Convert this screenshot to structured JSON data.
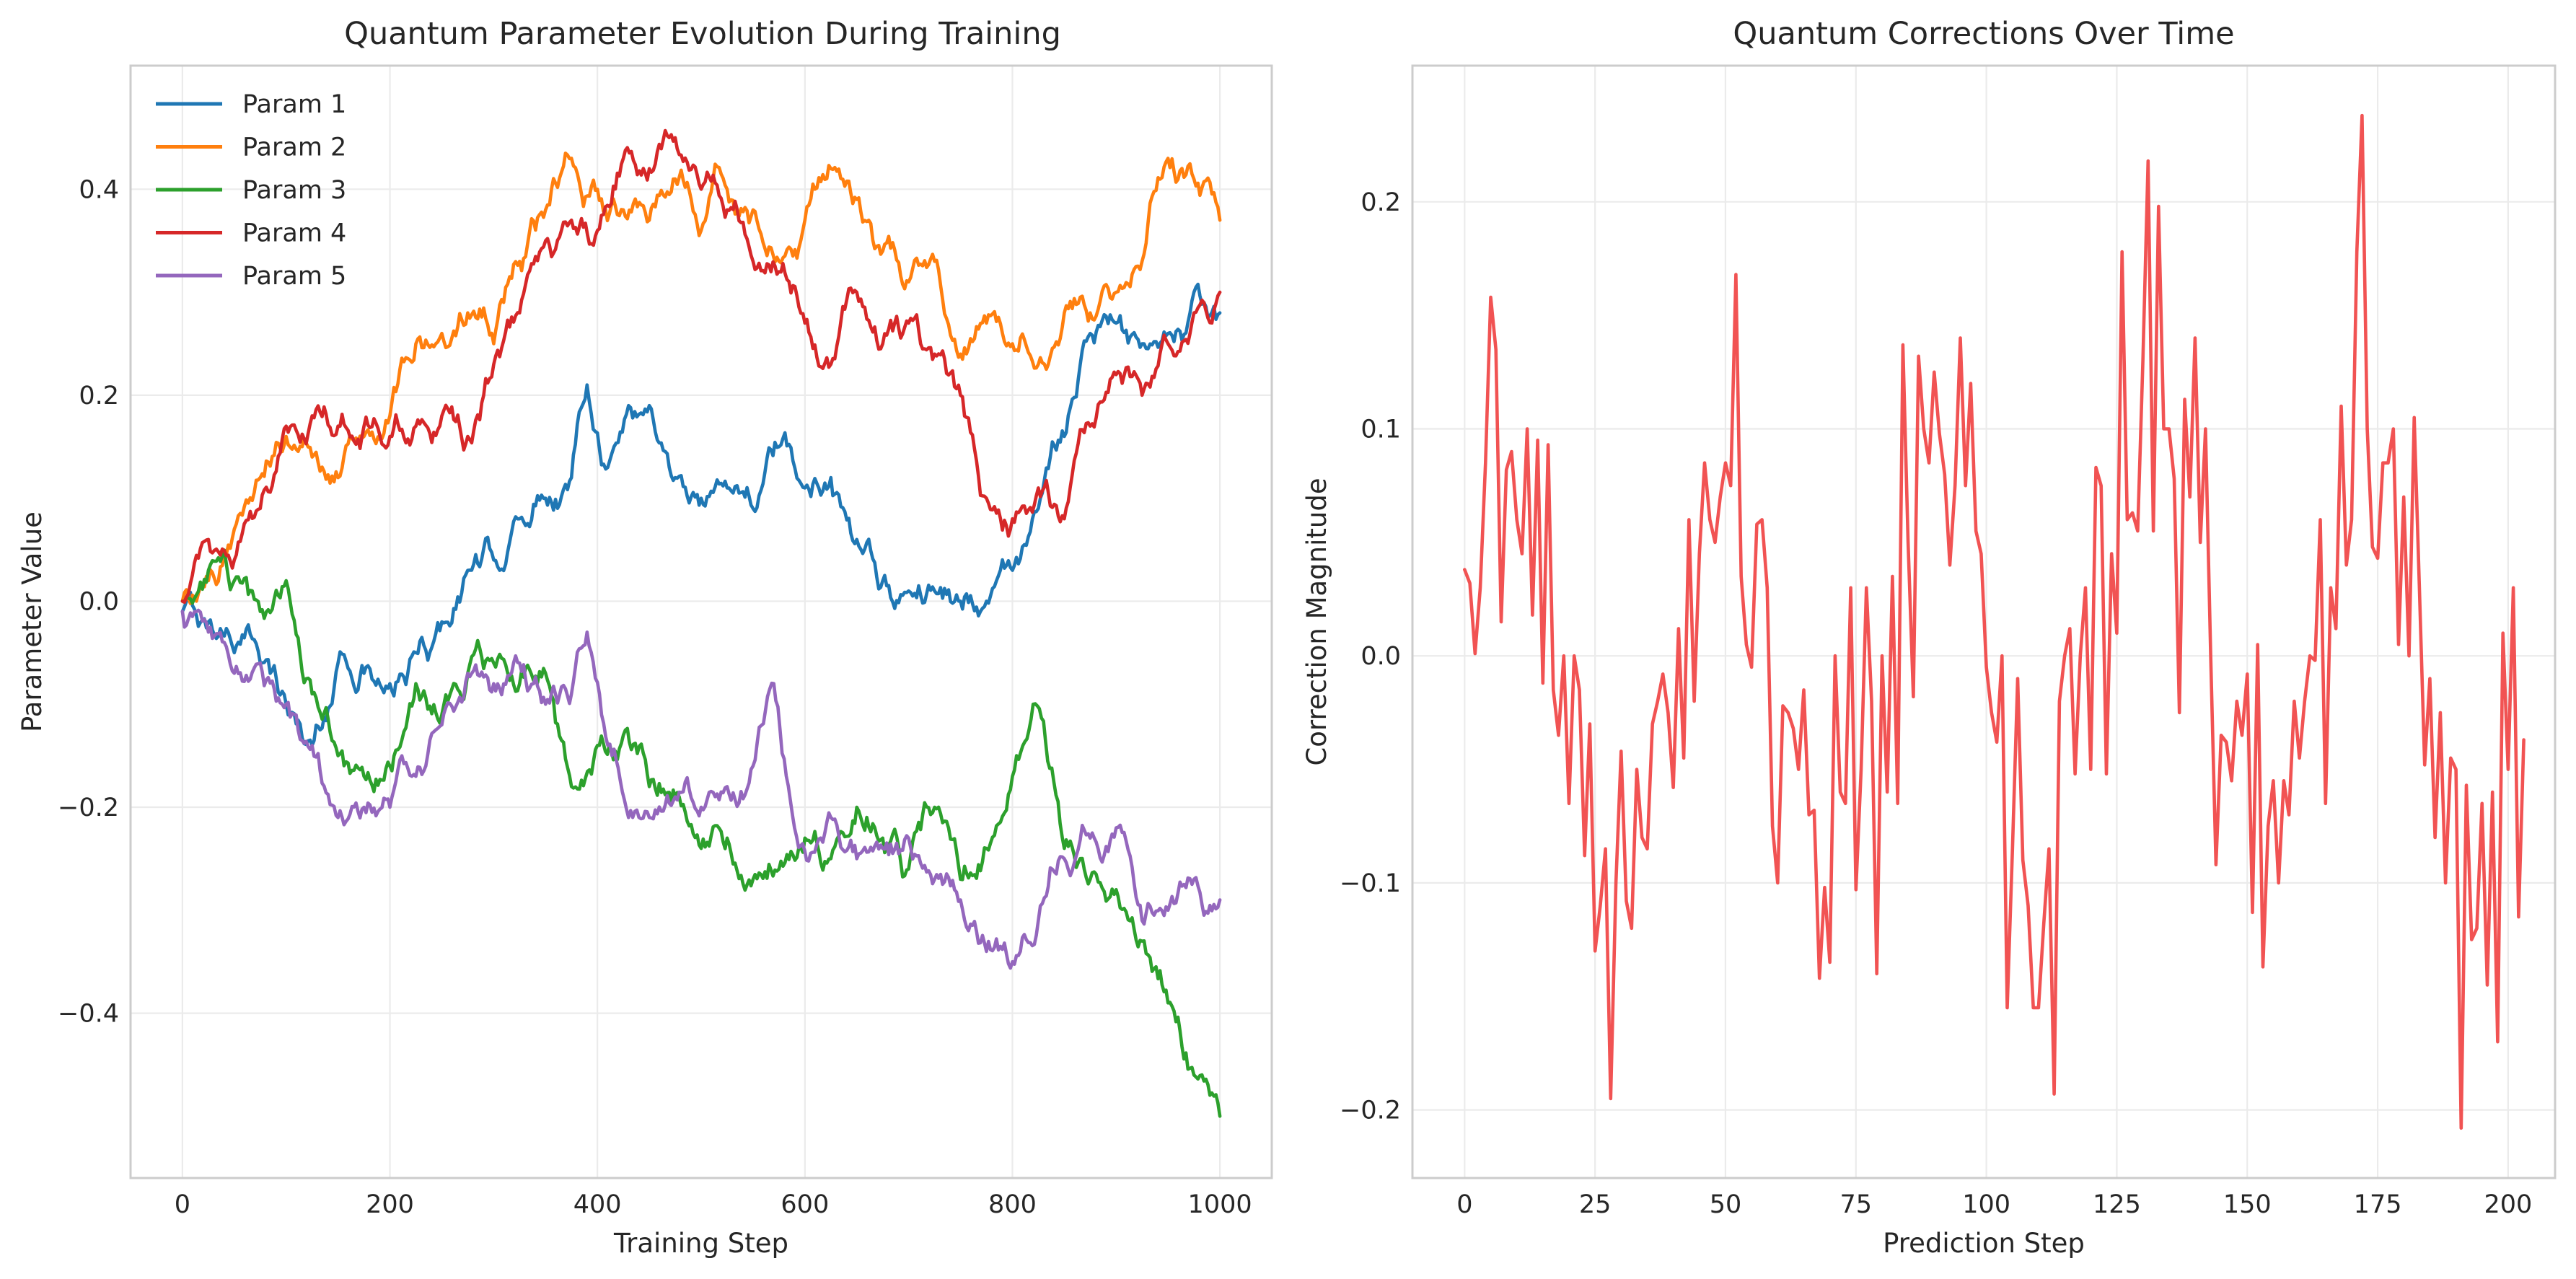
{
  "chart_data": [
    {
      "type": "line",
      "title": "Quantum Parameter Evolution During Training",
      "xlabel": "Training Step",
      "ylabel": "Parameter Value",
      "xlim": [
        -50,
        1050
      ],
      "ylim": [
        -0.56,
        0.52
      ],
      "xticks": [
        0,
        200,
        400,
        600,
        800,
        1000
      ],
      "yticks": [
        -0.4,
        -0.2,
        0.0,
        0.2,
        0.4
      ],
      "xtick_labels": [
        "0",
        "200",
        "400",
        "600",
        "800",
        "1000"
      ],
      "ytick_labels": [
        "−0.4",
        "−0.2",
        "0.0",
        "0.2",
        "0.4"
      ],
      "grid": true,
      "legend_position": "upper-left",
      "series": [
        {
          "name": "Param 1",
          "color": "#1f77b4",
          "x": [
            0,
            25,
            50,
            75,
            100,
            125,
            150,
            175,
            200,
            225,
            250,
            275,
            300,
            325,
            350,
            375,
            390,
            410,
            430,
            450,
            475,
            500,
            525,
            550,
            575,
            600,
            625,
            650,
            675,
            700,
            725,
            750,
            775,
            800,
            825,
            850,
            875,
            900,
            925,
            950,
            975,
            1000
          ],
          "values": [
            -0.01,
            -0.02,
            -0.05,
            -0.06,
            -0.1,
            -0.14,
            -0.06,
            -0.07,
            -0.08,
            -0.05,
            -0.02,
            0.03,
            0.04,
            0.08,
            0.1,
            0.12,
            0.21,
            0.13,
            0.19,
            0.19,
            0.12,
            0.1,
            0.11,
            0.09,
            0.15,
            0.11,
            0.12,
            0.06,
            0.02,
            0.01,
            0.01,
            0.0,
            0.0,
            0.03,
            0.09,
            0.16,
            0.26,
            0.27,
            0.25,
            0.26,
            0.3,
            0.28
          ]
        },
        {
          "name": "Param 2",
          "color": "#ff7f0e",
          "x": [
            0,
            25,
            50,
            75,
            100,
            125,
            150,
            175,
            200,
            225,
            250,
            275,
            300,
            325,
            350,
            375,
            400,
            425,
            450,
            475,
            500,
            525,
            550,
            575,
            600,
            625,
            650,
            675,
            700,
            725,
            750,
            775,
            800,
            825,
            850,
            875,
            900,
            925,
            950,
            975,
            1000
          ],
          "values": [
            0.0,
            0.02,
            0.07,
            0.12,
            0.16,
            0.14,
            0.12,
            0.16,
            0.18,
            0.25,
            0.26,
            0.28,
            0.25,
            0.33,
            0.38,
            0.43,
            0.4,
            0.38,
            0.37,
            0.41,
            0.36,
            0.4,
            0.38,
            0.33,
            0.37,
            0.42,
            0.39,
            0.34,
            0.31,
            0.33,
            0.24,
            0.27,
            0.25,
            0.23,
            0.28,
            0.28,
            0.3,
            0.33,
            0.43,
            0.41,
            0.37
          ]
        },
        {
          "name": "Param 3",
          "color": "#2ca02c",
          "x": [
            0,
            25,
            50,
            75,
            100,
            125,
            150,
            175,
            200,
            225,
            250,
            275,
            300,
            325,
            350,
            375,
            400,
            425,
            450,
            475,
            500,
            525,
            550,
            575,
            600,
            625,
            650,
            675,
            700,
            725,
            750,
            775,
            800,
            820,
            850,
            875,
            900,
            925,
            950,
            975,
            1000
          ],
          "values": [
            0.0,
            0.03,
            0.02,
            -0.01,
            0.02,
            -0.09,
            -0.15,
            -0.17,
            -0.16,
            -0.08,
            -0.11,
            -0.07,
            -0.06,
            -0.08,
            -0.07,
            -0.18,
            -0.14,
            -0.13,
            -0.18,
            -0.19,
            -0.24,
            -0.23,
            -0.27,
            -0.26,
            -0.23,
            -0.25,
            -0.2,
            -0.23,
            -0.26,
            -0.2,
            -0.27,
            -0.24,
            -0.17,
            -0.1,
            -0.24,
            -0.27,
            -0.28,
            -0.33,
            -0.39,
            -0.46,
            -0.5
          ]
        },
        {
          "name": "Param 4",
          "color": "#d62728",
          "x": [
            0,
            25,
            50,
            75,
            100,
            125,
            150,
            175,
            200,
            225,
            250,
            275,
            300,
            325,
            350,
            375,
            400,
            425,
            450,
            475,
            500,
            525,
            550,
            575,
            600,
            625,
            650,
            675,
            700,
            725,
            750,
            775,
            800,
            825,
            850,
            875,
            900,
            925,
            950,
            975,
            1000
          ],
          "values": [
            0.0,
            0.06,
            0.04,
            0.09,
            0.17,
            0.18,
            0.17,
            0.17,
            0.16,
            0.17,
            0.18,
            0.16,
            0.23,
            0.28,
            0.35,
            0.37,
            0.36,
            0.43,
            0.42,
            0.45,
            0.4,
            0.38,
            0.33,
            0.32,
            0.27,
            0.23,
            0.3,
            0.25,
            0.27,
            0.24,
            0.2,
            0.1,
            0.08,
            0.11,
            0.08,
            0.17,
            0.22,
            0.2,
            0.25,
            0.28,
            0.3
          ]
        },
        {
          "name": "Param 5",
          "color": "#9467bd",
          "x": [
            0,
            25,
            50,
            75,
            100,
            125,
            150,
            175,
            200,
            225,
            250,
            275,
            300,
            325,
            350,
            375,
            390,
            410,
            430,
            450,
            475,
            500,
            525,
            550,
            570,
            590,
            625,
            650,
            675,
            700,
            725,
            750,
            775,
            800,
            825,
            850,
            875,
            900,
            925,
            950,
            975,
            1000
          ],
          "values": [
            -0.01,
            -0.03,
            -0.07,
            -0.06,
            -0.1,
            -0.14,
            -0.21,
            -0.2,
            -0.2,
            -0.17,
            -0.12,
            -0.07,
            -0.08,
            -0.06,
            -0.1,
            -0.09,
            -0.03,
            -0.14,
            -0.21,
            -0.21,
            -0.19,
            -0.2,
            -0.18,
            -0.16,
            -0.08,
            -0.22,
            -0.21,
            -0.25,
            -0.24,
            -0.23,
            -0.27,
            -0.29,
            -0.34,
            -0.35,
            -0.31,
            -0.25,
            -0.23,
            -0.22,
            -0.31,
            -0.3,
            -0.27,
            -0.29
          ]
        }
      ]
    },
    {
      "type": "line",
      "title": "Quantum Corrections Over Time",
      "xlabel": "Prediction Step",
      "ylabel": "Correction Magnitude",
      "xlim": [
        -10,
        209
      ],
      "ylim": [
        -0.23,
        0.26
      ],
      "xticks": [
        0,
        25,
        50,
        75,
        100,
        125,
        150,
        175,
        200
      ],
      "yticks": [
        -0.2,
        -0.1,
        0.0,
        0.1,
        0.2
      ],
      "xtick_labels": [
        "0",
        "25",
        "50",
        "75",
        "100",
        "125",
        "150",
        "175",
        "200"
      ],
      "ytick_labels": [
        "−0.2",
        "−0.1",
        "0.0",
        "0.1",
        "0.2"
      ],
      "grid": true,
      "series": [
        {
          "color": "#f04a4a",
          "values": [
            0.038,
            0.032,
            0.001,
            0.03,
            0.085,
            0.158,
            0.135,
            0.015,
            0.082,
            0.09,
            0.06,
            0.045,
            0.1,
            0.018,
            0.095,
            -0.012,
            0.093,
            -0.015,
            -0.035,
            0.0,
            -0.065,
            0.0,
            -0.015,
            -0.088,
            -0.03,
            -0.13,
            -0.11,
            -0.085,
            -0.195,
            -0.1,
            -0.042,
            -0.108,
            -0.12,
            -0.05,
            -0.08,
            -0.085,
            -0.03,
            -0.02,
            -0.008,
            -0.025,
            -0.058,
            0.012,
            -0.045,
            0.06,
            -0.02,
            0.045,
            0.085,
            0.06,
            0.05,
            0.07,
            0.085,
            0.075,
            0.168,
            0.035,
            0.005,
            -0.005,
            0.058,
            0.06,
            0.03,
            -0.075,
            -0.1,
            -0.022,
            -0.025,
            -0.032,
            -0.05,
            -0.015,
            -0.07,
            -0.068,
            -0.142,
            -0.102,
            -0.135,
            0.0,
            -0.06,
            -0.065,
            0.03,
            -0.103,
            -0.05,
            0.03,
            -0.02,
            -0.14,
            0.0,
            -0.06,
            0.035,
            -0.065,
            0.137,
            0.05,
            -0.018,
            0.132,
            0.1,
            0.085,
            0.125,
            0.098,
            0.08,
            0.04,
            0.075,
            0.14,
            0.075,
            0.12,
            0.055,
            0.045,
            -0.005,
            -0.025,
            -0.038,
            0.0,
            -0.155,
            -0.085,
            -0.01,
            -0.09,
            -0.11,
            -0.155,
            -0.155,
            -0.118,
            -0.085,
            -0.193,
            -0.02,
            0.0,
            0.012,
            -0.052,
            0.0,
            0.03,
            -0.05,
            0.083,
            0.075,
            -0.052,
            0.045,
            0.01,
            0.178,
            0.06,
            0.063,
            0.055,
            0.13,
            0.218,
            0.055,
            0.198,
            0.1,
            0.1,
            0.078,
            -0.025,
            0.113,
            0.07,
            0.14,
            0.05,
            0.1,
            0.0,
            -0.092,
            -0.035,
            -0.038,
            -0.055,
            -0.02,
            -0.035,
            -0.008,
            -0.113,
            0.005,
            -0.137,
            -0.075,
            -0.055,
            -0.1,
            -0.055,
            -0.07,
            -0.02,
            -0.045,
            -0.02,
            0.0,
            -0.002,
            0.06,
            -0.065,
            0.03,
            0.012,
            0.11,
            0.04,
            0.06,
            0.178,
            0.238,
            0.1,
            0.048,
            0.043,
            0.085,
            0.085,
            0.1,
            0.005,
            0.07,
            0.0,
            0.105,
            0.03,
            -0.048,
            -0.01,
            -0.08,
            -0.025,
            -0.1,
            -0.045,
            -0.05,
            -0.208,
            -0.057,
            -0.125,
            -0.12,
            -0.065,
            -0.145,
            -0.06,
            -0.17,
            0.01,
            -0.05,
            0.03,
            -0.115,
            -0.037
          ]
        }
      ]
    }
  ]
}
